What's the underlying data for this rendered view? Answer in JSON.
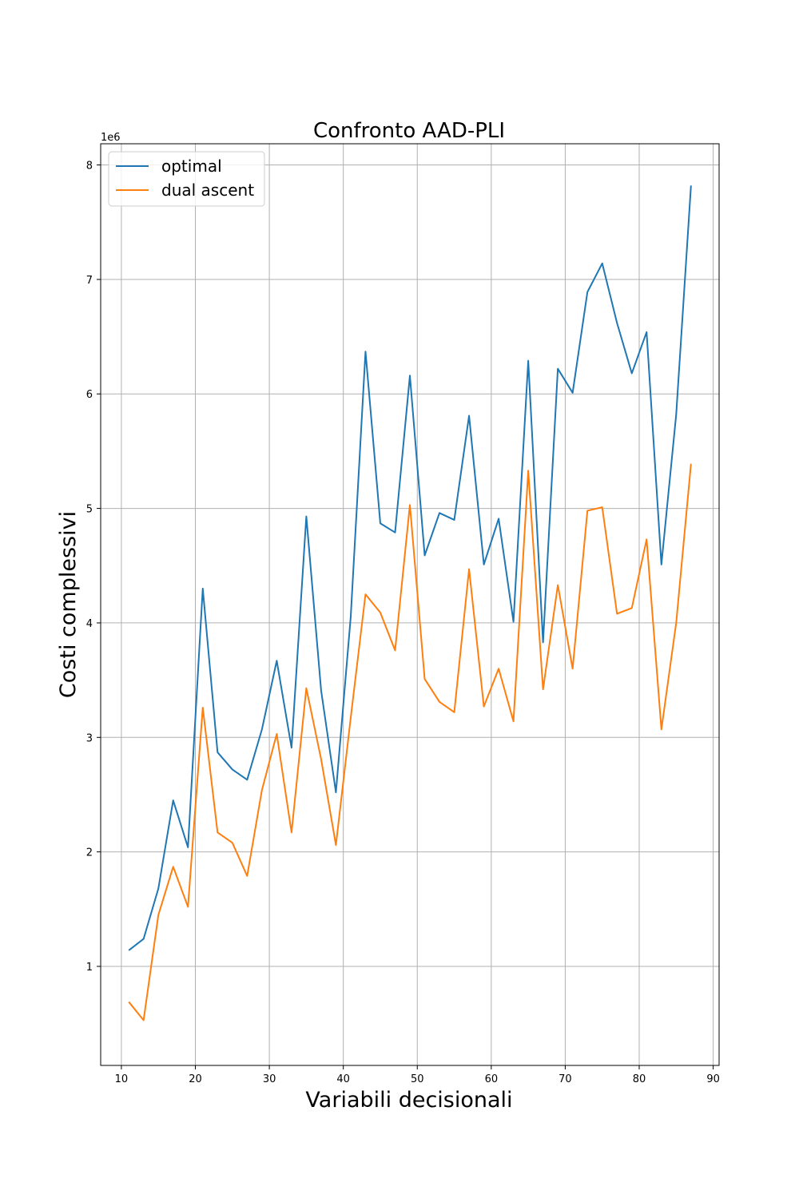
{
  "chart_data": {
    "type": "line",
    "title": "Confronto AAD-PLI",
    "xlabel": "Variabili decisionali",
    "ylabel": "Costi complessivi",
    "y_offset_label": "1e6",
    "xlim": [
      7.2,
      90.8
    ],
    "ylim": [
      0.135,
      8.185
    ],
    "x_ticks": [
      10,
      20,
      30,
      40,
      50,
      60,
      70,
      80,
      90
    ],
    "y_ticks": [
      1,
      2,
      3,
      4,
      5,
      6,
      7,
      8
    ],
    "grid": true,
    "legend_position": "upper-left",
    "x": [
      11,
      13,
      15,
      17,
      19,
      21,
      23,
      25,
      27,
      29,
      31,
      33,
      35,
      37,
      39,
      41,
      43,
      45,
      47,
      49,
      51,
      53,
      55,
      57,
      59,
      61,
      63,
      65,
      67,
      69,
      71,
      73,
      75,
      77,
      79,
      81,
      83,
      85,
      87
    ],
    "series": [
      {
        "name": "optimal",
        "color": "#1f77b4",
        "values": [
          1.14,
          1.24,
          1.68,
          2.45,
          2.04,
          4.3,
          2.87,
          2.72,
          2.63,
          3.07,
          3.67,
          2.91,
          4.93,
          3.41,
          2.52,
          4.05,
          6.37,
          4.87,
          4.79,
          6.16,
          4.59,
          4.96,
          4.9,
          5.81,
          4.51,
          4.91,
          4.01,
          6.29,
          3.83,
          6.22,
          6.01,
          6.89,
          7.14,
          6.62,
          6.18,
          6.54,
          4.51,
          5.82,
          7.82
        ]
      },
      {
        "name": "dual ascent",
        "color": "#ff7f0e",
        "values": [
          0.69,
          0.53,
          1.45,
          1.87,
          1.52,
          3.26,
          2.17,
          2.08,
          1.79,
          2.54,
          3.03,
          2.17,
          3.43,
          2.81,
          2.06,
          3.17,
          4.25,
          4.09,
          3.76,
          5.03,
          3.51,
          3.31,
          3.22,
          4.47,
          3.27,
          3.6,
          3.14,
          5.33,
          3.42,
          4.33,
          3.6,
          4.98,
          5.01,
          4.08,
          4.13,
          4.73,
          3.07,
          4.0,
          5.39
        ]
      }
    ]
  }
}
